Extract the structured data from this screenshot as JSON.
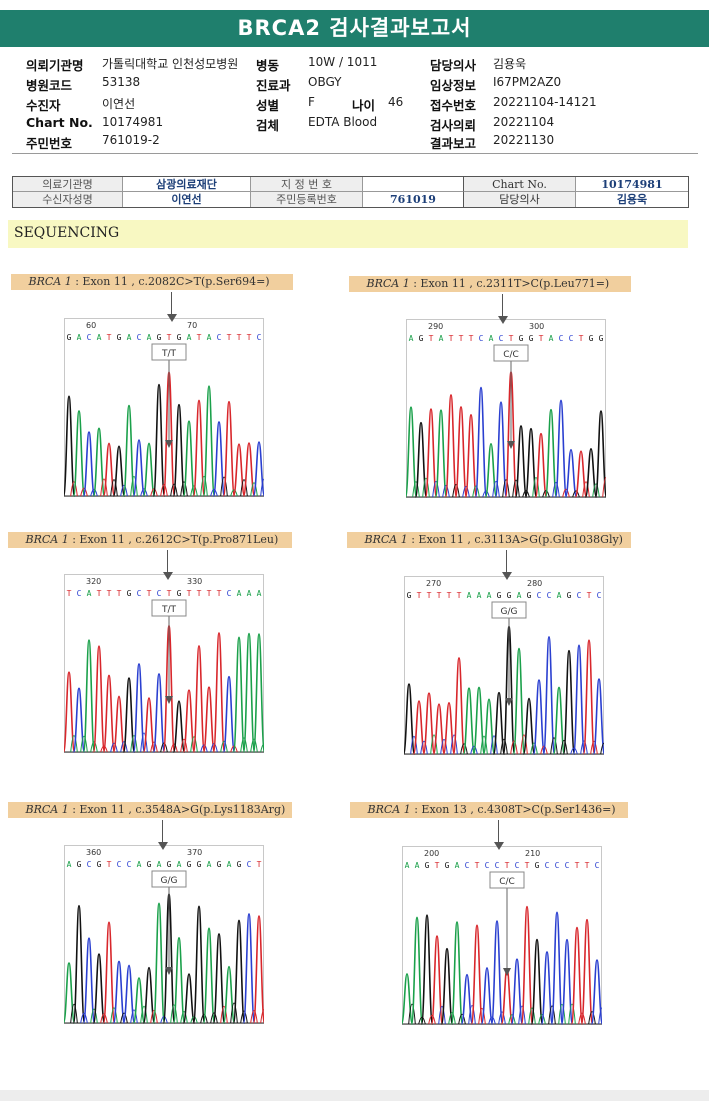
{
  "title": "BRCA2 검사결과보고서",
  "header": {
    "rows": [
      [
        {
          "label": "의뢰기관명",
          "value": "가톨릭대학교 인천성모병원"
        },
        {
          "label": "병동",
          "value": "10W / 1011"
        },
        {
          "label": "담당의사",
          "value": "김용욱"
        }
      ],
      [
        {
          "label": "병원코드",
          "value": "53138"
        },
        {
          "label": "진료과",
          "value": "OBGY"
        },
        {
          "label": "임상정보",
          "value": "I67PM2AZ0"
        }
      ],
      [
        {
          "label": "수진자",
          "value": "이연선"
        },
        {
          "label": "성별",
          "value": "F"
        },
        {
          "label": "접수번호",
          "value": "20221104-14121"
        }
      ],
      [
        {
          "label": "Chart No.",
          "value": "10174981"
        },
        {
          "label": "검체",
          "value": "EDTA Blood"
        },
        {
          "label": "검사의뢰",
          "value": "20221104"
        }
      ],
      [
        {
          "label": "주민번호",
          "value": "761019-2"
        },
        {
          "label": "",
          "value": ""
        },
        {
          "label": "결과보고",
          "value": "20221130"
        }
      ]
    ],
    "age_label": "나이",
    "age_value": "46"
  },
  "info_table": {
    "r1_c1": "의료기관명",
    "r1_c2": "삼광의료재단",
    "r1_c3": "지 정 번 호",
    "r1_c4": "",
    "r1_c5": "Chart No.",
    "r1_c6": "10174981",
    "r2_c1": "수신자성명",
    "r2_c2": "이연선",
    "r2_c3": "주민등록번호",
    "r2_c4": "761019",
    "r2_c5": "담당의사",
    "r2_c6": "김용욱"
  },
  "section_title": "SEQUENCING",
  "panels": [
    {
      "gene": "BRCA 1",
      "desc": " : Exon 11 , c.2082C>T(p.Ser694=)",
      "pos1": "60",
      "pos2": "70",
      "seq": "GACATGACAGTGATACTTTC",
      "genotype": "T/T"
    },
    {
      "gene": "BRCA 1",
      "desc": " : Exon 11 , c.2311T>C(p.Leu771=)",
      "pos1": "290",
      "pos2": "300",
      "seq": "AGTATTTCACTGGTACCTGG",
      "genotype": "C/C"
    },
    {
      "gene": "BRCA 1",
      "desc": " : Exon 11 , c.2612C>T(p.Pro871Leu)",
      "pos1": "320",
      "pos2": "330",
      "seq": "TCATTTGCTCTGTTTTCAAA",
      "genotype": "T/T"
    },
    {
      "gene": "BRCA 1",
      "desc": " : Exon 11 , c.3113A>G(p.Glu1038Gly)",
      "pos1": "270",
      "pos2": "280",
      "seq": "GTTTTTAAAGGAGCCAGCTC",
      "genotype": "G/G"
    },
    {
      "gene": "BRCA 1",
      "desc": " : Exon 11 , c.3548A>G(p.Lys1183Arg)",
      "pos1": "360",
      "pos2": "370",
      "seq": "AGCGTCCAGAGAGGAGAGCT",
      "genotype": "G/G"
    },
    {
      "gene": "BRCA 1",
      "desc": " : Exon 13 , c.4308T>C(p.Ser1436=)",
      "pos1": "200",
      "pos2": "210",
      "seq": "AAGTGACTCCTCTGCCCTTC",
      "genotype": "C/C"
    }
  ],
  "colors": {
    "A": "#1aa04a",
    "C": "#2a3fd0",
    "G": "#111111",
    "T": "#d8262b",
    "header_bg": "#1f7f6d",
    "label_bar": "#f1cf9e",
    "banner": "#f8f8c2"
  }
}
